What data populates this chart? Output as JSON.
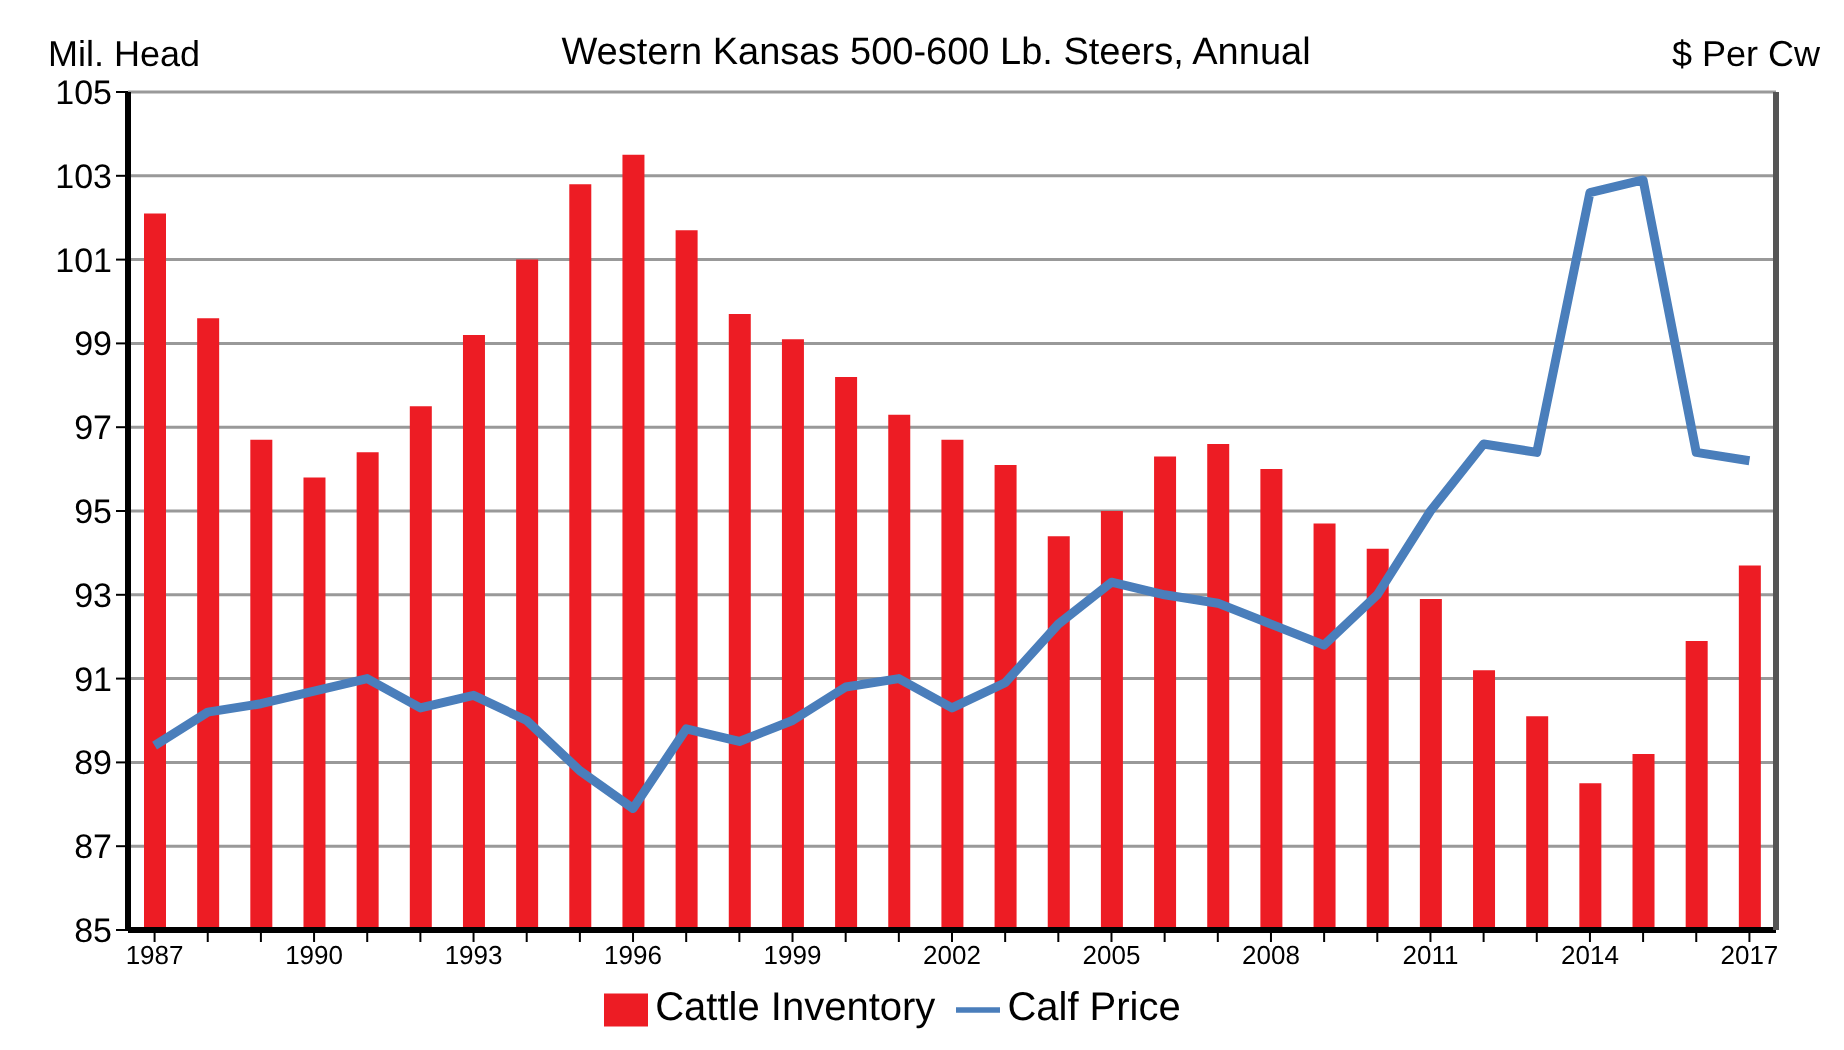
{
  "chart_data": {
    "type": "bar",
    "title": "Western Kansas 500-600 Lb. Steers, Annual",
    "ylabel": "Mil. Head",
    "y2label": "$ Per Cw",
    "categories": [
      "1987",
      null,
      null,
      "1990",
      null,
      null,
      "1993",
      null,
      null,
      "1996",
      null,
      null,
      "1999",
      null,
      null,
      "2002",
      null,
      null,
      "2005",
      null,
      null,
      "2008",
      null,
      null,
      "2011",
      null,
      null,
      "2014",
      null,
      null,
      "2017"
    ],
    "series": [
      {
        "name": "Cattle Inventory",
        "color": "#ed1c24",
        "values": [
          102.1,
          99.6,
          96.7,
          95.8,
          96.4,
          97.5,
          99.2,
          101.0,
          102.8,
          103.5,
          101.7,
          99.7,
          99.1,
          98.2,
          97.3,
          96.7,
          96.1,
          94.4,
          95.0,
          96.3,
          96.6,
          96.0,
          94.7,
          94.1,
          92.9,
          91.2,
          90.1,
          88.5,
          89.2,
          91.9,
          93.7
        ]
      },
      {
        "name": "Calf Price",
        "type": "line",
        "color": "#4a7ebb",
        "values": [
          89.4,
          90.2,
          90.4,
          90.7,
          91.0,
          90.3,
          90.6,
          90.0,
          88.8,
          87.9,
          89.8,
          89.5,
          90.0,
          90.8,
          91.0,
          90.3,
          90.9,
          92.3,
          93.3,
          93.0,
          92.8,
          92.3,
          91.8,
          93.0,
          95.0,
          96.6,
          96.4,
          102.6,
          102.9,
          96.4,
          96.2
        ]
      }
    ],
    "ylim": [
      85,
      105
    ],
    "yticks": [
      85,
      87,
      89,
      91,
      93,
      95,
      97,
      99,
      101,
      103,
      105
    ],
    "grid": "y",
    "legend": "bottom",
    "marker": "none",
    "line_style": "solid"
  }
}
